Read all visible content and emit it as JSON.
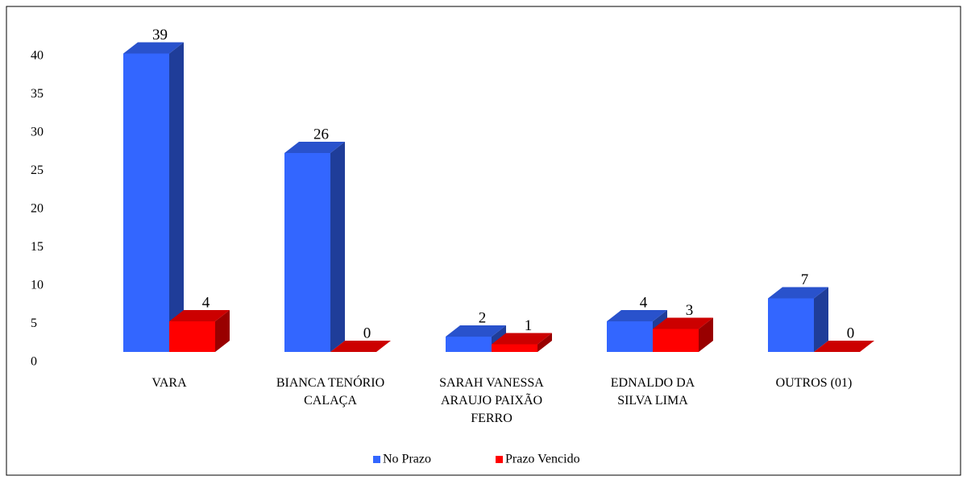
{
  "chart_data": {
    "type": "bar3d",
    "categories": [
      "VARA",
      "BIANCA TENÓRIO CALAÇA",
      "SARAH VANESSA ARAUJO PAIXÃO FERRO",
      "EDNALDO DA SILVA LIMA",
      "OUTROS (01)"
    ],
    "series": [
      {
        "name": "No Prazo",
        "color": "#3366ff",
        "values": [
          39,
          26,
          2,
          4,
          7
        ]
      },
      {
        "name": "Prazo Vencido",
        "color": "#ff0000",
        "values": [
          4,
          0,
          1,
          3,
          0
        ]
      }
    ],
    "ylim": [
      0,
      40
    ],
    "yticks": [
      0,
      5,
      10,
      15,
      20,
      25,
      30,
      35,
      40
    ],
    "legend": "bottom"
  }
}
